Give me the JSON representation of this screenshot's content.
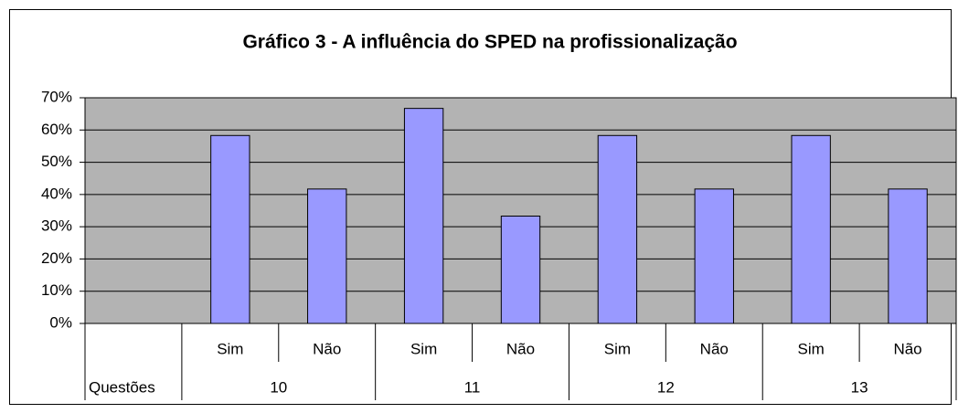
{
  "chart_data": {
    "type": "bar",
    "title": "Gráfico 3 - A influência do SPED na profissionalização",
    "categories": [
      null,
      "Sim",
      "Não",
      "Sim",
      "Não",
      "Sim",
      "Não",
      "Sim",
      "Não"
    ],
    "values": [
      null,
      58.3,
      41.7,
      66.7,
      33.3,
      58.3,
      41.7,
      58.3,
      41.7
    ],
    "group_label": "Questões",
    "groups": [
      "10",
      "11",
      "12",
      "13"
    ],
    "color": "#9999ff",
    "ylim": [
      0,
      70
    ],
    "yticks": [
      {
        "value": 0,
        "label": "0%"
      },
      {
        "value": 10,
        "label": "10%"
      },
      {
        "value": 20,
        "label": "20%"
      },
      {
        "value": 30,
        "label": "30%"
      },
      {
        "value": 40,
        "label": "40%"
      },
      {
        "value": 50,
        "label": "50%"
      },
      {
        "value": 60,
        "label": "60%"
      },
      {
        "value": 70,
        "label": "70%"
      }
    ],
    "grid": true
  }
}
